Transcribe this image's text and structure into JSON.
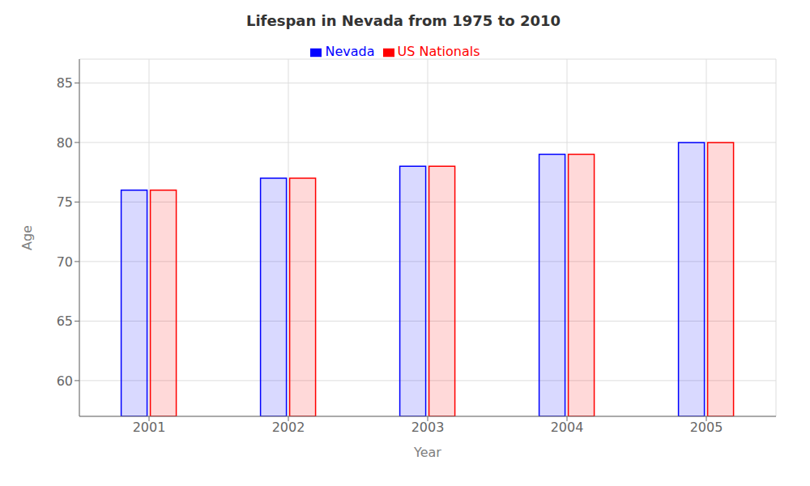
{
  "chart_data": {
    "type": "bar",
    "title": "Lifespan in Nevada from 1975 to 2010",
    "xlabel": "Year",
    "ylabel": "Age",
    "categories": [
      "2001",
      "2002",
      "2003",
      "2004",
      "2005"
    ],
    "series": [
      {
        "name": "Nevada",
        "color": "#0000ff",
        "values": [
          76,
          77,
          78,
          79,
          80
        ]
      },
      {
        "name": "US Nationals",
        "color": "#ff0000",
        "values": [
          76,
          77,
          78,
          79,
          80
        ]
      }
    ],
    "ylim": [
      57,
      87
    ],
    "yticks": [
      60,
      65,
      70,
      75,
      80,
      85
    ],
    "grid": true,
    "legend": "top"
  }
}
